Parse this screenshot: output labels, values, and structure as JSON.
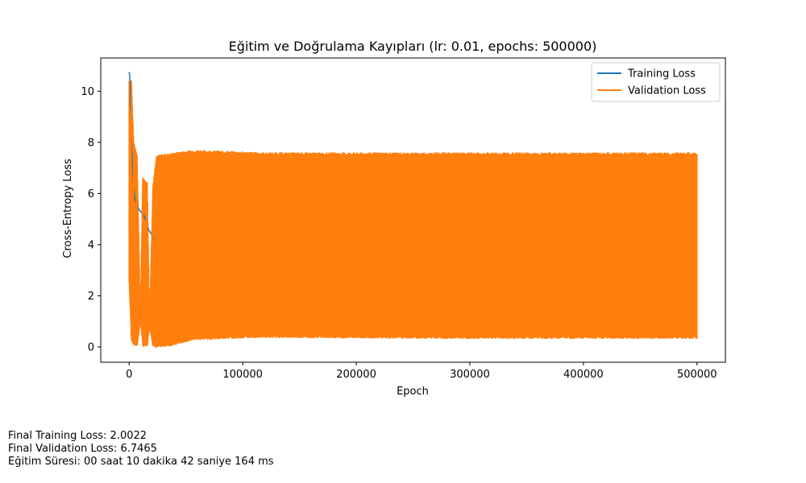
{
  "chart_data": {
    "type": "line",
    "title": "Eğitim ve Doğrulama Kayıpları (lr: 0.01, epochs: 500000)",
    "xlabel": "Epoch",
    "ylabel": "Cross-Entropy Loss",
    "xlim": [
      -25000,
      525000
    ],
    "ylim": [
      -0.6,
      11.3
    ],
    "x_ticks": [
      0,
      100000,
      200000,
      300000,
      400000,
      500000
    ],
    "x_tick_labels": [
      "0",
      "100000",
      "200000",
      "300000",
      "400000",
      "500000"
    ],
    "y_ticks": [
      0,
      2,
      4,
      6,
      8,
      10
    ],
    "y_tick_labels": [
      "0",
      "2",
      "4",
      "6",
      "8",
      "10"
    ],
    "grid": false,
    "legend_position": "top-right",
    "series": [
      {
        "name": "Training Loss",
        "color": "#1f77b4",
        "points": [
          [
            0,
            10.75
          ],
          [
            500,
            10.6
          ],
          [
            1000,
            9.9
          ],
          [
            2000,
            8.2
          ],
          [
            3500,
            6.5
          ],
          [
            5000,
            5.8
          ],
          [
            7000,
            5.5
          ],
          [
            9000,
            5.35
          ],
          [
            11000,
            5.25
          ],
          [
            13000,
            5.15
          ],
          [
            15000,
            4.9
          ],
          [
            17000,
            4.6
          ],
          [
            19000,
            4.45
          ],
          [
            21000,
            4.3
          ],
          [
            23000,
            4.2
          ]
        ]
      },
      {
        "name": "Validation Loss",
        "color": "#ff7f0e",
        "envelope": [
          {
            "x": 0,
            "lo": 2.5,
            "hi": 10.4
          },
          {
            "x": 2000,
            "lo": 0.3,
            "hi": 10.4
          },
          {
            "x": 4000,
            "lo": 0.1,
            "hi": 8.0
          },
          {
            "x": 7000,
            "lo": 0.05,
            "hi": 7.5
          },
          {
            "x": 10000,
            "lo": 1.0,
            "hi": 1.1
          },
          {
            "x": 12000,
            "lo": 0.05,
            "hi": 6.6
          },
          {
            "x": 16000,
            "lo": 0.05,
            "hi": 6.4
          },
          {
            "x": 18000,
            "lo": 0.8,
            "hi": 1.0
          },
          {
            "x": 21000,
            "lo": 0.05,
            "hi": 6.3
          },
          {
            "x": 24000,
            "lo": 0.0,
            "hi": 7.45
          },
          {
            "x": 40000,
            "lo": 0.1,
            "hi": 7.55
          },
          {
            "x": 55000,
            "lo": 0.3,
            "hi": 7.65
          },
          {
            "x": 80000,
            "lo": 0.35,
            "hi": 7.62
          },
          {
            "x": 120000,
            "lo": 0.4,
            "hi": 7.55
          },
          {
            "x": 200000,
            "lo": 0.38,
            "hi": 7.55
          },
          {
            "x": 300000,
            "lo": 0.36,
            "hi": 7.55
          },
          {
            "x": 400000,
            "lo": 0.36,
            "hi": 7.55
          },
          {
            "x": 500000,
            "lo": 0.36,
            "hi": 7.55
          }
        ]
      }
    ]
  },
  "footer": {
    "final_training_loss": "Final Training Loss: 2.0022",
    "final_validation_loss": "Final Validation Loss: 6.7465",
    "training_time": "Eğitim Süresi: 00 saat 10 dakika 42 saniye 164 ms"
  }
}
